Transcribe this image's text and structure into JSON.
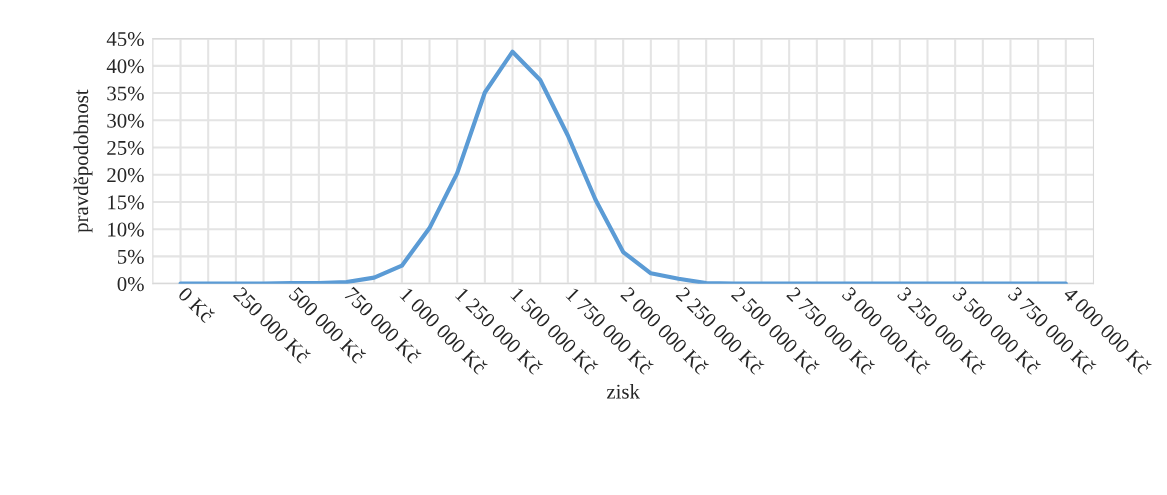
{
  "chart_data": {
    "type": "line",
    "xlabel": "zisk",
    "ylabel": "pravděpodobnost",
    "categories": [
      "0 Kč",
      null,
      "250 000 Kč",
      null,
      "500 000 Kč",
      null,
      "750 000 Kč",
      null,
      "1 000 000 Kč",
      null,
      "1 250 000 Kč",
      null,
      "1 500 000 Kč",
      null,
      "1 750 000 Kč",
      null,
      "2 000 000 Kč",
      null,
      "2 250 000 Kč",
      null,
      "2 500 000 Kč",
      null,
      "2 750 000 Kč",
      null,
      "3 000 000 Kč",
      null,
      "3 250 000 Kč",
      null,
      "3 500 000 Kč",
      null,
      "3 750 000 Kč",
      null,
      "4 000 000 Kč"
    ],
    "series": [
      {
        "color": "#5b9bd5",
        "values": [
          0,
          0,
          0,
          0,
          0.1,
          0.1,
          0.3,
          1.1,
          3.3,
          10.2,
          20.3,
          35.1,
          42.6,
          37.4,
          27.2,
          15.4,
          5.8,
          1.9,
          0.9,
          0.1,
          0,
          0,
          0,
          0,
          0,
          0,
          0,
          0,
          0,
          0,
          0,
          0,
          0
        ]
      }
    ],
    "ylim": [
      0,
      45
    ],
    "yticks": [
      {
        "value": 0,
        "label": "0%"
      },
      {
        "value": 5,
        "label": "5%"
      },
      {
        "value": 10,
        "label": "10%"
      },
      {
        "value": 15,
        "label": "15%"
      },
      {
        "value": 20,
        "label": "20%"
      },
      {
        "value": 25,
        "label": "25%"
      },
      {
        "value": 30,
        "label": "30%"
      },
      {
        "value": 35,
        "label": "35%"
      },
      {
        "value": 40,
        "label": "40%"
      },
      {
        "value": 45,
        "label": "45%"
      }
    ],
    "grid": true,
    "marker": "none",
    "line_style": "solid"
  }
}
